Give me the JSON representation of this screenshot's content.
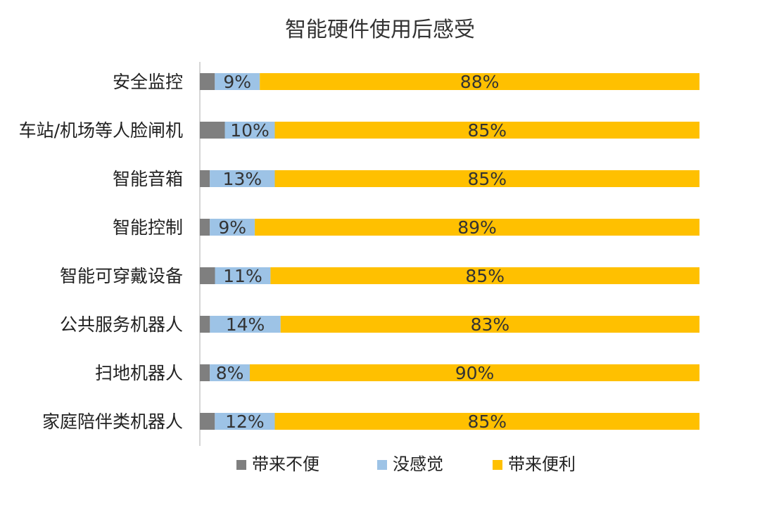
{
  "chart_data": {
    "type": "bar",
    "orientation": "horizontal",
    "stacked": true,
    "percent_stacked": true,
    "title": "智能硬件使用后感受",
    "xlabel": "",
    "ylabel": "",
    "categories": [
      "安全监控",
      "车站/机场等人脸闸机",
      "智能音箱",
      "智能控制",
      "智能可穿戴设备",
      "公共服务机器人",
      "扫地机器人",
      "家庭陪伴类机器人"
    ],
    "series": [
      {
        "name": "带来不便",
        "color": "#7f7f7f",
        "values": [
          3,
          5,
          2,
          2,
          3,
          2,
          2,
          3
        ],
        "labels": [
          "",
          "",
          "",
          "",
          "",
          "",
          "",
          ""
        ]
      },
      {
        "name": "没感觉",
        "color": "#9dc3e6",
        "values": [
          9,
          10,
          13,
          9,
          11,
          14,
          8,
          12
        ],
        "labels": [
          "9%",
          "10%",
          "13%",
          "9%",
          "11%",
          "14%",
          "8%",
          "12%"
        ]
      },
      {
        "name": "带来便利",
        "color": "#ffc000",
        "values": [
          88,
          85,
          85,
          89,
          85,
          83,
          90,
          85
        ],
        "labels": [
          "88%",
          "85%",
          "85%",
          "89%",
          "85%",
          "83%",
          "90%",
          "85%"
        ]
      }
    ],
    "xlim": [
      0,
      100
    ],
    "grid": false,
    "legend_position": "bottom"
  }
}
